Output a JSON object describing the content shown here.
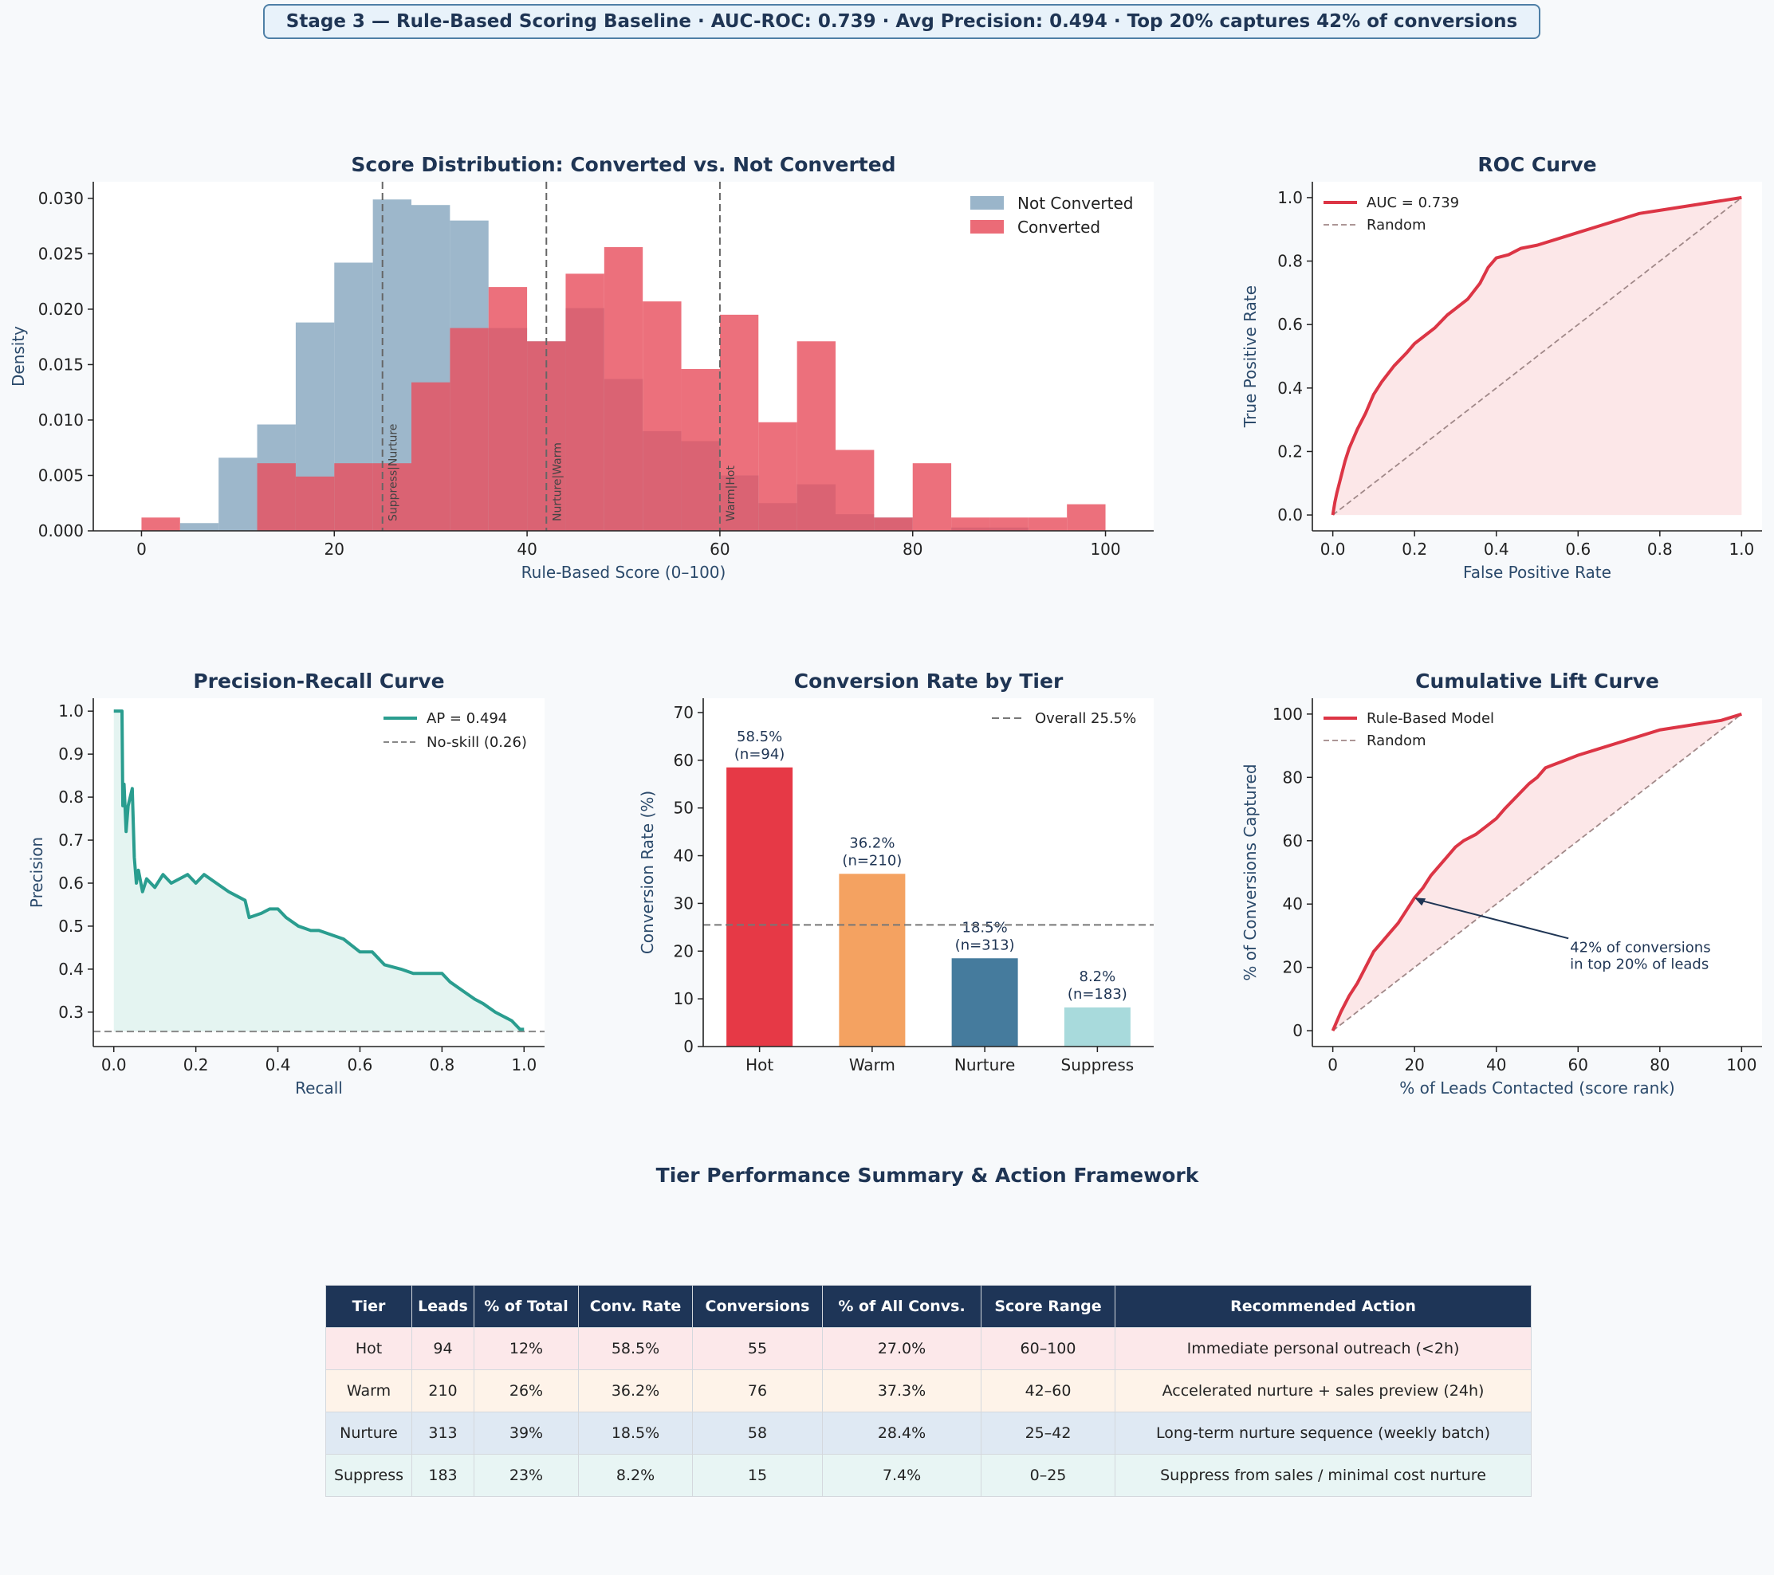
{
  "banner": "Stage 3 — Rule-Based Scoring Baseline  ·  AUC-ROC: 0.739  ·  Avg Precision: 0.494  ·  Top 20% captures 42% of conversions",
  "colors": {
    "not_converted": "#8fadc4",
    "converted": "#e8515f",
    "roc": "#dc3545",
    "pr": "#2a9d8f",
    "random": "#a08888",
    "hot": "#e63946",
    "warm": "#f4a261",
    "nurture": "#457b9d",
    "suppress": "#a8dadc"
  },
  "chart_data": [
    {
      "type": "histogram",
      "title": "Score Distribution: Converted vs. Not Converted",
      "xlabel": "Rule-Based Score (0–100)",
      "ylabel": "Density",
      "xlim": [
        -5,
        105
      ],
      "ylim": [
        0,
        0.0315
      ],
      "xticks": [
        0,
        20,
        40,
        60,
        80,
        100
      ],
      "yticks": [
        0.0,
        0.005,
        0.01,
        0.015,
        0.02,
        0.025,
        0.03
      ],
      "legend": [
        "Not Converted",
        "Converted"
      ],
      "bin_edges": [
        0,
        4,
        8,
        12,
        16,
        20,
        24,
        28,
        32,
        36,
        40,
        44,
        48,
        52,
        56,
        60,
        64,
        68,
        72,
        76,
        80,
        84,
        88,
        92,
        96,
        100
      ],
      "series": [
        {
          "name": "Not Converted",
          "values": [
            0,
            0.0007,
            0.0066,
            0.0096,
            0.0188,
            0.0242,
            0.0299,
            0.0294,
            0.028,
            0.0183,
            0.0171,
            0.0201,
            0.0137,
            0.009,
            0.0081,
            0.005,
            0.0025,
            0.0042,
            0.0015,
            0.0012,
            0,
            0.0003,
            0.0003,
            0,
            0
          ]
        },
        {
          "name": "Converted",
          "values": [
            0.0012,
            0,
            0,
            0.0061,
            0.0049,
            0.0061,
            0.0061,
            0.0134,
            0.0183,
            0.022,
            0.0171,
            0.0232,
            0.0256,
            0.0207,
            0.0146,
            0.0195,
            0.0098,
            0.0171,
            0.0073,
            0.0012,
            0.0061,
            0.0012,
            0.0012,
            0.0012,
            0.0024
          ]
        }
      ],
      "thresholds": [
        {
          "x": 25,
          "label": "Suppress|Nurture"
        },
        {
          "x": 42,
          "label": "Nurture|Warm"
        },
        {
          "x": 60,
          "label": "Warm|Hot"
        }
      ]
    },
    {
      "type": "line",
      "title": "ROC Curve",
      "xlabel": "False Positive Rate",
      "ylabel": "True Positive Rate",
      "xlim": [
        -0.05,
        1.05
      ],
      "ylim": [
        -0.05,
        1.05
      ],
      "xticks": [
        0.0,
        0.2,
        0.4,
        0.6,
        0.8,
        1.0
      ],
      "yticks": [
        0.0,
        0.2,
        0.4,
        0.6,
        0.8,
        1.0
      ],
      "legend": [
        "AUC = 0.739",
        "Random"
      ],
      "series": [
        {
          "name": "AUC = 0.739",
          "x": [
            0,
            0.005,
            0.01,
            0.02,
            0.03,
            0.04,
            0.05,
            0.06,
            0.08,
            0.1,
            0.12,
            0.15,
            0.18,
            0.2,
            0.22,
            0.25,
            0.28,
            0.3,
            0.33,
            0.36,
            0.38,
            0.4,
            0.43,
            0.46,
            0.5,
            0.55,
            0.6,
            0.65,
            0.7,
            0.75,
            0.8,
            0.85,
            0.9,
            0.95,
            1.0
          ],
          "y": [
            0,
            0.04,
            0.07,
            0.12,
            0.17,
            0.21,
            0.24,
            0.27,
            0.32,
            0.38,
            0.42,
            0.47,
            0.51,
            0.54,
            0.56,
            0.59,
            0.63,
            0.65,
            0.68,
            0.73,
            0.78,
            0.81,
            0.82,
            0.84,
            0.85,
            0.87,
            0.89,
            0.91,
            0.93,
            0.95,
            0.96,
            0.97,
            0.98,
            0.99,
            1.0
          ]
        },
        {
          "name": "Random",
          "x": [
            0,
            1
          ],
          "y": [
            0,
            1
          ]
        }
      ]
    },
    {
      "type": "line",
      "title": "Precision-Recall Curve",
      "xlabel": "Recall",
      "ylabel": "Precision",
      "xlim": [
        -0.05,
        1.05
      ],
      "ylim": [
        0.22,
        1.03
      ],
      "xticks": [
        0.0,
        0.2,
        0.4,
        0.6,
        0.8,
        1.0
      ],
      "yticks": [
        0.3,
        0.4,
        0.5,
        0.6,
        0.7,
        0.8,
        0.9,
        1.0
      ],
      "legend": [
        "AP = 0.494",
        "No-skill (0.26)"
      ],
      "baseline": 0.255,
      "series": [
        {
          "name": "AP = 0.494",
          "x": [
            0,
            0.02,
            0.022,
            0.025,
            0.03,
            0.035,
            0.04,
            0.045,
            0.05,
            0.055,
            0.06,
            0.07,
            0.08,
            0.1,
            0.12,
            0.14,
            0.16,
            0.18,
            0.2,
            0.22,
            0.25,
            0.28,
            0.3,
            0.32,
            0.33,
            0.36,
            0.38,
            0.4,
            0.42,
            0.45,
            0.48,
            0.5,
            0.53,
            0.56,
            0.6,
            0.63,
            0.66,
            0.7,
            0.73,
            0.76,
            0.8,
            0.82,
            0.85,
            0.88,
            0.9,
            0.93,
            0.95,
            0.97,
            0.98,
            0.99,
            1.0
          ],
          "y": [
            1.0,
            1.0,
            0.78,
            0.83,
            0.72,
            0.78,
            0.8,
            0.82,
            0.66,
            0.6,
            0.63,
            0.58,
            0.61,
            0.59,
            0.62,
            0.6,
            0.61,
            0.62,
            0.6,
            0.62,
            0.6,
            0.58,
            0.57,
            0.56,
            0.52,
            0.53,
            0.54,
            0.54,
            0.52,
            0.5,
            0.49,
            0.49,
            0.48,
            0.47,
            0.44,
            0.44,
            0.41,
            0.4,
            0.39,
            0.39,
            0.39,
            0.37,
            0.35,
            0.33,
            0.32,
            0.3,
            0.29,
            0.28,
            0.27,
            0.26,
            0.26
          ]
        },
        {
          "name": "No-skill (0.26)",
          "x": [
            -0.05,
            1.05
          ],
          "y": [
            0.255,
            0.255
          ]
        }
      ]
    },
    {
      "type": "bar",
      "title": "Conversion Rate by Tier",
      "xlabel": "",
      "ylabel": "Conversion Rate (%)",
      "ylim": [
        0,
        73
      ],
      "yticks": [
        0,
        10,
        20,
        30,
        40,
        50,
        60,
        70
      ],
      "categories": [
        "Hot",
        "Warm",
        "Nurture",
        "Suppress"
      ],
      "values": [
        58.5,
        36.2,
        18.5,
        8.2
      ],
      "bar_labels": [
        "58.5%",
        "36.2%",
        "18.5%",
        "8.2%"
      ],
      "bar_counts": [
        "(n=94)",
        "(n=210)",
        "(n=313)",
        "(n=183)"
      ],
      "overall_rate": 25.5,
      "legend": [
        "Overall 25.5%"
      ]
    },
    {
      "type": "line",
      "title": "Cumulative Lift Curve",
      "xlabel": "% of Leads Contacted (score rank)",
      "ylabel": "% of Conversions Captured",
      "xlim": [
        -5,
        105
      ],
      "ylim": [
        -5,
        105
      ],
      "xticks": [
        0,
        20,
        40,
        60,
        80,
        100
      ],
      "yticks": [
        0,
        20,
        40,
        60,
        80,
        100
      ],
      "legend": [
        "Rule-Based Model",
        "Random"
      ],
      "annotation": {
        "x": 20,
        "y": 42,
        "line1": "42% of conversions",
        "line2": "in top 20% of leads"
      },
      "series": [
        {
          "name": "Rule-Based Model",
          "x": [
            0,
            2,
            4,
            6,
            8,
            10,
            12,
            14,
            16,
            18,
            20,
            22,
            24,
            26,
            28,
            30,
            32,
            35,
            38,
            40,
            42,
            45,
            48,
            50,
            52,
            54,
            56,
            58,
            60,
            65,
            70,
            75,
            80,
            85,
            90,
            95,
            100
          ],
          "y": [
            0,
            6,
            11,
            15,
            20,
            25,
            28,
            31,
            34,
            38,
            42,
            45,
            49,
            52,
            55,
            58,
            60,
            62,
            65,
            67,
            70,
            74,
            78,
            80,
            83,
            84,
            85,
            86,
            87,
            89,
            91,
            93,
            95,
            96,
            97,
            98,
            100
          ]
        },
        {
          "name": "Random",
          "x": [
            0,
            100
          ],
          "y": [
            0,
            100
          ]
        }
      ]
    }
  ],
  "table": {
    "title": "Tier Performance Summary & Action Framework",
    "headers": [
      "Tier",
      "Leads",
      "% of Total",
      "Conv. Rate",
      "Conversions",
      "% of All Convs.",
      "Score Range",
      "Recommended Action"
    ],
    "rows": [
      [
        "Hot",
        "94",
        "12%",
        "58.5%",
        "55",
        "27.0%",
        "60–100",
        "Immediate personal outreach (<2h)"
      ],
      [
        "Warm",
        "210",
        "26%",
        "36.2%",
        "76",
        "37.3%",
        "42–60",
        "Accelerated nurture + sales preview (24h)"
      ],
      [
        "Nurture",
        "313",
        "39%",
        "18.5%",
        "58",
        "28.4%",
        "25–42",
        "Long-term nurture sequence (weekly batch)"
      ],
      [
        "Suppress",
        "183",
        "23%",
        "8.2%",
        "15",
        "7.4%",
        "0–25",
        "Suppress from sales / minimal cost nurture"
      ]
    ]
  }
}
